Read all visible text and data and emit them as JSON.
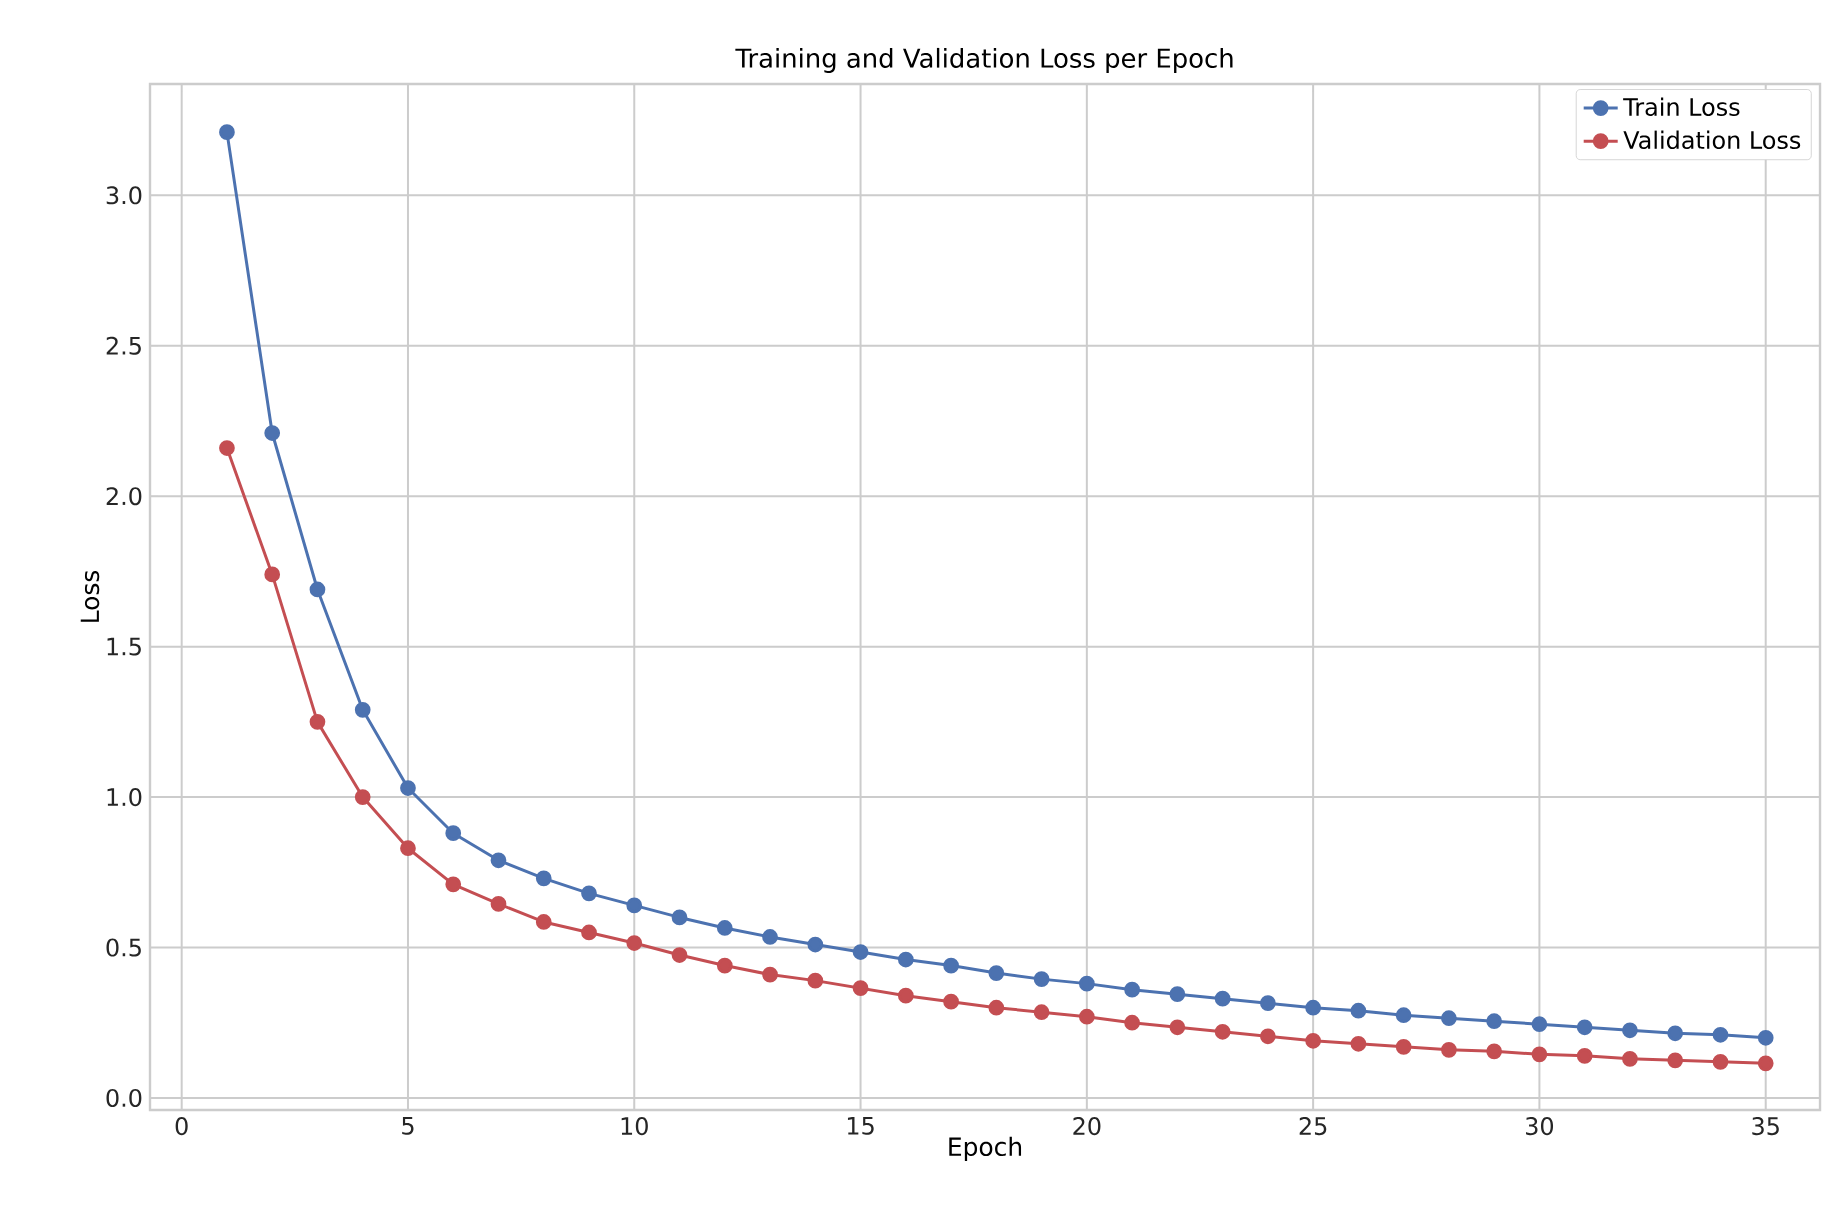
{
  "chart_data": {
    "type": "line",
    "title": "Training and Validation Loss per Epoch",
    "xlabel": "Epoch",
    "ylabel": "Loss",
    "x": [
      1,
      2,
      3,
      4,
      5,
      6,
      7,
      8,
      9,
      10,
      11,
      12,
      13,
      14,
      15,
      16,
      17,
      18,
      19,
      20,
      21,
      22,
      23,
      24,
      25,
      26,
      27,
      28,
      29,
      30,
      31,
      32,
      33,
      34,
      35
    ],
    "series": [
      {
        "name": "Train Loss",
        "color": "#4c72b0",
        "values": [
          3.21,
          2.21,
          1.69,
          1.29,
          1.03,
          0.88,
          0.79,
          0.73,
          0.68,
          0.64,
          0.6,
          0.565,
          0.535,
          0.51,
          0.485,
          0.46,
          0.44,
          0.415,
          0.395,
          0.38,
          0.36,
          0.345,
          0.33,
          0.315,
          0.3,
          0.29,
          0.275,
          0.265,
          0.255,
          0.245,
          0.235,
          0.225,
          0.215,
          0.21,
          0.2
        ]
      },
      {
        "name": "Validation Loss",
        "color": "#c44e52",
        "values": [
          2.16,
          1.74,
          1.25,
          1.0,
          0.83,
          0.71,
          0.645,
          0.585,
          0.55,
          0.515,
          0.475,
          0.44,
          0.41,
          0.39,
          0.365,
          0.34,
          0.32,
          0.3,
          0.285,
          0.27,
          0.25,
          0.235,
          0.22,
          0.205,
          0.19,
          0.18,
          0.17,
          0.16,
          0.155,
          0.145,
          0.14,
          0.13,
          0.125,
          0.12,
          0.115
        ]
      }
    ],
    "xlim": [
      -0.7,
      36.2
    ],
    "ylim": [
      -0.04,
      3.37
    ],
    "xticks": [
      0,
      5,
      10,
      15,
      20,
      25,
      30,
      35
    ],
    "yticks": [
      {
        "value": 0,
        "label": "0.0"
      },
      {
        "value": 0.5,
        "label": "0.5"
      },
      {
        "value": 1,
        "label": "1.0"
      },
      {
        "value": 1.5,
        "label": "1.5"
      },
      {
        "value": 2,
        "label": "2.0"
      },
      {
        "value": 2.5,
        "label": "2.5"
      },
      {
        "value": 3,
        "label": "3.0"
      }
    ],
    "grid": true,
    "legend": "top right",
    "marker": "circle",
    "line_style": "solid"
  }
}
